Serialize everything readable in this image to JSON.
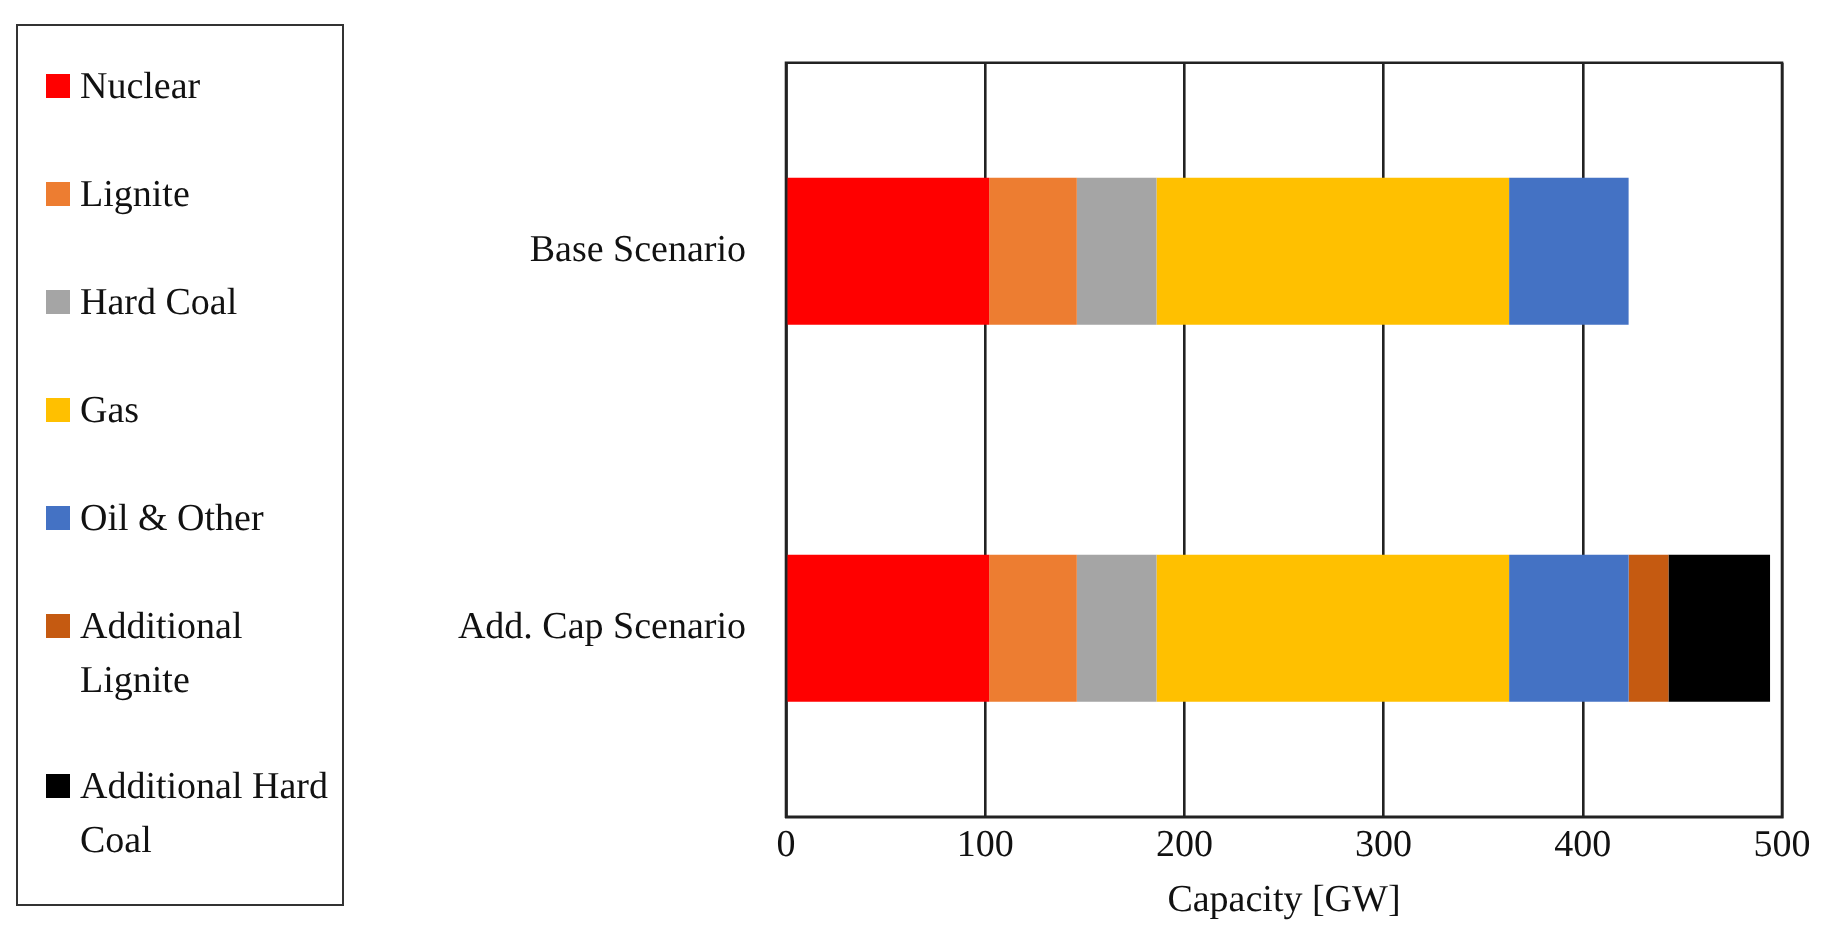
{
  "chart_data": {
    "type": "bar",
    "orientation": "horizontal",
    "stacked": true,
    "xlabel": "Capacity [GW]",
    "categories": [
      "Base Scenario",
      "Add. Cap Scenario"
    ],
    "series": [
      {
        "name": "Nuclear",
        "color": "#ff0000",
        "values": [
          102,
          102
        ]
      },
      {
        "name": "Lignite",
        "color": "#ed7d31",
        "values": [
          44,
          44
        ]
      },
      {
        "name": "Hard Coal",
        "color": "#a5a5a5",
        "values": [
          40,
          40
        ]
      },
      {
        "name": "Gas",
        "color": "#ffc000",
        "values": [
          177,
          177
        ]
      },
      {
        "name": "Oil & Other",
        "color": "#4472c4",
        "values": [
          60,
          60
        ]
      },
      {
        "name": "Additional Lignite",
        "color": "#c55a11",
        "values": [
          null,
          20
        ]
      },
      {
        "name": "Additional Hard Coal",
        "color": "#000000",
        "values": [
          null,
          51
        ]
      }
    ],
    "xlim": [
      0,
      500
    ],
    "xticks": [
      0,
      100,
      200,
      300,
      400,
      500
    ],
    "grid": "x",
    "legend": "left"
  }
}
